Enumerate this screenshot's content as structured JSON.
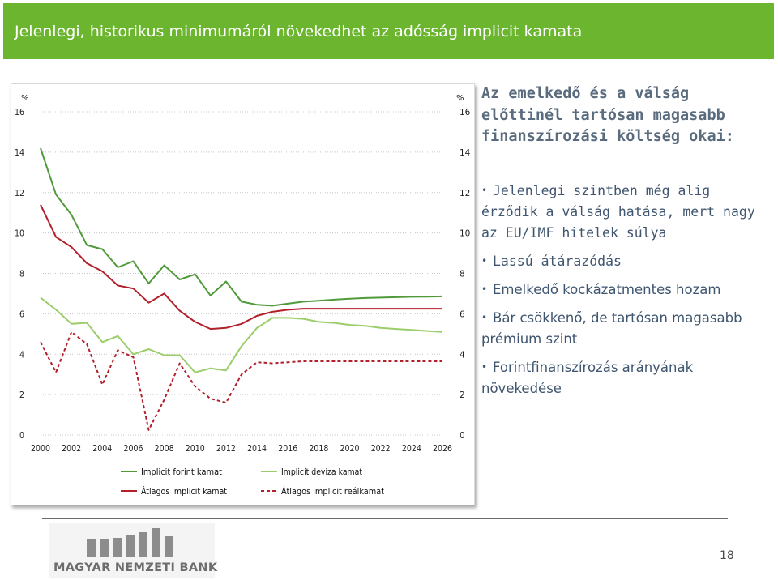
{
  "slide": {
    "title": "Jelenlegi, historikus minimumáról növekedhet az adósság implicit kamata",
    "heading": "Az emelkedő és a válság előttinél tartósan magasabb finanszírozási költség okai:",
    "bullets": [
      "Jelenlegi szintben még alig érződik a válság hatása, mert nagy az EU/IMF hitelek súlya",
      "Lassú átárazódás",
      "Emelkedő kockázatmentes hozam",
      "Bár csökkenő, de tartósan magasabb prémium szint",
      "Forintfinanszírozás arányának növekedése"
    ],
    "logo_text": "MAGYAR NEMZETI BANK",
    "page_number": "18",
    "colors": {
      "title_bar": "#6bb52f",
      "title_text": "#ffffff",
      "heading": "#5a6b7e",
      "body_text": "#3f5570"
    }
  },
  "chart_data": {
    "type": "line",
    "title": "",
    "ylabel_left": "%",
    "ylabel_right": "%",
    "ylim": [
      0,
      16
    ],
    "yticks": [
      0,
      2,
      4,
      6,
      8,
      10,
      12,
      14,
      16
    ],
    "xlim": [
      2000,
      2026
    ],
    "xticks": [
      2000,
      2002,
      2004,
      2006,
      2008,
      2010,
      2012,
      2014,
      2016,
      2018,
      2020,
      2022,
      2024,
      2026
    ],
    "grid": "horizontal-dotted",
    "legend_position": "bottom",
    "series": [
      {
        "name": "Implicit forint kamat",
        "color": "#4f9a3a",
        "dash": "solid",
        "points": [
          [
            2000,
            14.2
          ],
          [
            2001,
            11.9
          ],
          [
            2002,
            10.9
          ],
          [
            2003,
            9.4
          ],
          [
            2004,
            9.2
          ],
          [
            2005,
            8.3
          ],
          [
            2006,
            8.6
          ],
          [
            2007,
            7.5
          ],
          [
            2008,
            8.4
          ],
          [
            2009,
            7.7
          ],
          [
            2010,
            7.95
          ],
          [
            2011,
            6.9
          ],
          [
            2012,
            7.6
          ],
          [
            2013,
            6.6
          ],
          [
            2014,
            6.45
          ],
          [
            2015,
            6.4
          ],
          [
            2016,
            6.5
          ],
          [
            2017,
            6.6
          ],
          [
            2018,
            6.65
          ],
          [
            2019,
            6.7
          ],
          [
            2020,
            6.75
          ],
          [
            2021,
            6.78
          ],
          [
            2022,
            6.8
          ],
          [
            2023,
            6.82
          ],
          [
            2024,
            6.84
          ],
          [
            2025,
            6.85
          ],
          [
            2026,
            6.86
          ]
        ]
      },
      {
        "name": "Implicit deviza kamat",
        "color": "#9bcd6a",
        "dash": "solid",
        "points": [
          [
            2000,
            6.8
          ],
          [
            2001,
            6.2
          ],
          [
            2002,
            5.5
          ],
          [
            2003,
            5.55
          ],
          [
            2004,
            4.6
          ],
          [
            2005,
            4.9
          ],
          [
            2006,
            4.0
          ],
          [
            2007,
            4.25
          ],
          [
            2008,
            3.95
          ],
          [
            2009,
            3.95
          ],
          [
            2010,
            3.1
          ],
          [
            2011,
            3.3
          ],
          [
            2012,
            3.2
          ],
          [
            2013,
            4.4
          ],
          [
            2014,
            5.3
          ],
          [
            2015,
            5.8
          ],
          [
            2016,
            5.8
          ],
          [
            2017,
            5.75
          ],
          [
            2018,
            5.6
          ],
          [
            2019,
            5.55
          ],
          [
            2020,
            5.45
          ],
          [
            2021,
            5.4
          ],
          [
            2022,
            5.3
          ],
          [
            2023,
            5.25
          ],
          [
            2024,
            5.2
          ],
          [
            2025,
            5.15
          ],
          [
            2026,
            5.1
          ]
        ]
      },
      {
        "name": "Átlagos implicit kamat",
        "color": "#b2202b",
        "dash": "solid",
        "points": [
          [
            2000,
            11.4
          ],
          [
            2001,
            9.8
          ],
          [
            2002,
            9.3
          ],
          [
            2003,
            8.5
          ],
          [
            2004,
            8.1
          ],
          [
            2005,
            7.4
          ],
          [
            2006,
            7.25
          ],
          [
            2007,
            6.55
          ],
          [
            2008,
            7.0
          ],
          [
            2009,
            6.15
          ],
          [
            2010,
            5.6
          ],
          [
            2011,
            5.25
          ],
          [
            2012,
            5.3
          ],
          [
            2013,
            5.5
          ],
          [
            2014,
            5.9
          ],
          [
            2015,
            6.1
          ],
          [
            2016,
            6.2
          ],
          [
            2017,
            6.25
          ],
          [
            2018,
            6.25
          ],
          [
            2019,
            6.25
          ],
          [
            2020,
            6.25
          ],
          [
            2021,
            6.25
          ],
          [
            2022,
            6.25
          ],
          [
            2023,
            6.25
          ],
          [
            2024,
            6.25
          ],
          [
            2025,
            6.25
          ],
          [
            2026,
            6.25
          ]
        ]
      },
      {
        "name": "Átlagos implicit reálkamat",
        "color": "#b2202b",
        "dash": "dashed",
        "points": [
          [
            2000,
            4.6
          ],
          [
            2001,
            3.1
          ],
          [
            2002,
            5.1
          ],
          [
            2003,
            4.5
          ],
          [
            2004,
            2.5
          ],
          [
            2005,
            4.2
          ],
          [
            2006,
            3.85
          ],
          [
            2007,
            0.25
          ],
          [
            2008,
            1.75
          ],
          [
            2009,
            3.55
          ],
          [
            2010,
            2.4
          ],
          [
            2011,
            1.8
          ],
          [
            2012,
            1.6
          ],
          [
            2013,
            3.0
          ],
          [
            2014,
            3.6
          ],
          [
            2015,
            3.55
          ],
          [
            2016,
            3.6
          ],
          [
            2017,
            3.65
          ],
          [
            2018,
            3.65
          ],
          [
            2019,
            3.65
          ],
          [
            2020,
            3.65
          ],
          [
            2021,
            3.65
          ],
          [
            2022,
            3.65
          ],
          [
            2023,
            3.65
          ],
          [
            2024,
            3.65
          ],
          [
            2025,
            3.65
          ],
          [
            2026,
            3.65
          ]
        ]
      }
    ]
  }
}
